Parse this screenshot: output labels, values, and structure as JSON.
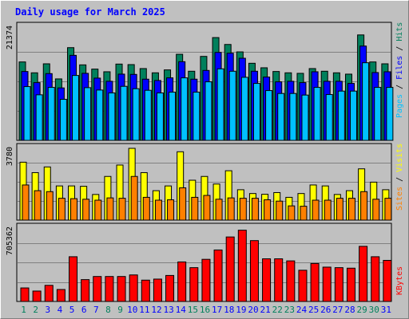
{
  "chart_data": {
    "type": "bar",
    "title": "Daily usage for March 2025",
    "title_color": "#0000ff",
    "categories": [
      "1",
      "2",
      "3",
      "4",
      "5",
      "6",
      "7",
      "8",
      "9",
      "10",
      "11",
      "12",
      "13",
      "14",
      "15",
      "16",
      "17",
      "18",
      "19",
      "20",
      "21",
      "22",
      "23",
      "24",
      "25",
      "26",
      "27",
      "28",
      "29",
      "30",
      "31"
    ],
    "weekend_days": [
      "1",
      "2",
      "8",
      "9",
      "15",
      "16",
      "22",
      "23",
      "29",
      "30"
    ],
    "weekend_label_color": "#00805c",
    "weekday_label_color": "#0000ff",
    "panels": [
      {
        "id": "hits_files_pages",
        "ylim": [
          0,
          21374
        ],
        "ytick": "21374",
        "right_labels": [
          {
            "text": "Pages",
            "color": "#00c0ff"
          },
          {
            "text": " / ",
            "color": "#000000"
          },
          {
            "text": "Files",
            "color": "#0000ff"
          },
          {
            "text": " / ",
            "color": "#000000"
          },
          {
            "text": "Hits",
            "color": "#00805c"
          }
        ],
        "series": [
          {
            "name": "Hits",
            "color": "#00805c",
            "values": [
              14800,
              12750,
              14450,
              11600,
              17500,
              14250,
              13450,
              12950,
              14400,
              14300,
              13550,
              12750,
              13300,
              16250,
              13050,
              15850,
              19400,
              18100,
              16700,
              14550,
              13700,
              13000,
              12750,
              12650,
              13550,
              13050,
              12750,
              12500,
              19900,
              14800,
              14450
            ]
          },
          {
            "name": "Files",
            "color": "#0000ff",
            "values": [
              13000,
              10900,
              12600,
              9900,
              16050,
              12650,
              11750,
              11150,
              12500,
              12450,
              11550,
              11300,
              11800,
              14850,
              11550,
              13200,
              16600,
              16450,
              15500,
              13050,
              11950,
              11050,
              11150,
              10900,
              12950,
              11150,
              11150,
              10750,
              17800,
              12800,
              12950
            ]
          },
          {
            "name": "Pages",
            "color": "#00c0ff",
            "values": [
              10150,
              8600,
              10000,
              7750,
              12250,
              9950,
              9500,
              8950,
              10200,
              9750,
              9450,
              8950,
              9100,
              11800,
              9100,
              11050,
              13500,
              13050,
              11900,
              10750,
              9400,
              8850,
              8850,
              8550,
              10000,
              8650,
              9300,
              9300,
              14650,
              10000,
              10000
            ]
          }
        ]
      },
      {
        "id": "visits_sites",
        "ylim": [
          0,
          3780
        ],
        "ytick": "3780",
        "right_labels": [
          {
            "text": "Sites",
            "color": "#ff8000"
          },
          {
            "text": " / ",
            "color": "#000000"
          },
          {
            "text": "Visits",
            "color": "#ffff00"
          }
        ],
        "series": [
          {
            "name": "Visits",
            "color": "#ffff00",
            "values": [
              3050,
              2500,
              2800,
              1800,
              1800,
              1780,
              1350,
              2300,
              2900,
              3780,
              2500,
              1550,
              1800,
              3600,
              2100,
              2300,
              1900,
              2600,
              1600,
              1400,
              1360,
              1450,
              1200,
              1400,
              1850,
              1800,
              1350,
              1550,
              2700,
              2000,
              1600
            ]
          },
          {
            "name": "Sites",
            "color": "#ff8000",
            "values": [
              1850,
              1550,
              1500,
              1150,
              1130,
              1100,
              1050,
              1170,
              1150,
              2300,
              1200,
              1050,
              1070,
              1700,
              1200,
              1300,
              1100,
              1170,
              1150,
              1150,
              1070,
              1000,
              750,
              730,
              1050,
              1050,
              1150,
              1150,
              1500,
              1100,
              1150
            ]
          }
        ]
      },
      {
        "id": "kbytes",
        "ylim": [
          0,
          705362
        ],
        "ytick": "705362",
        "right_labels": [
          {
            "text": "KBytes",
            "color": "#ff0000"
          }
        ],
        "series": [
          {
            "name": "KBytes",
            "color": "#ff0000",
            "values": [
              130000,
              100000,
              155000,
              115000,
              430000,
              210000,
              240000,
              240000,
              240000,
              255000,
              205000,
              215000,
              250000,
              380000,
              325000,
              405000,
              495000,
              620000,
              685000,
              585000,
              410000,
              410000,
              390000,
              300000,
              365000,
              330000,
              325000,
              320000,
              530000,
              430000,
              395000
            ]
          }
        ]
      }
    ]
  }
}
